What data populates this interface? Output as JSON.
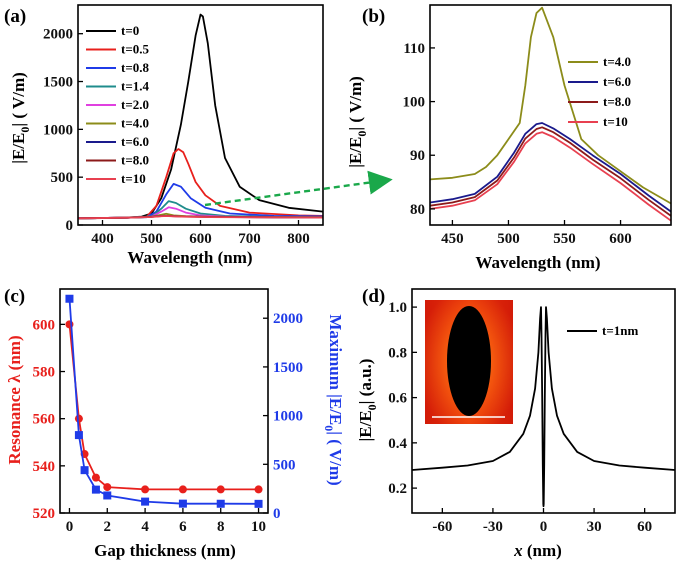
{
  "figure": {
    "panels": {
      "a": {
        "label": "(a)",
        "title": "",
        "xlabel": "Wavelength (nm)",
        "ylabel_parts": [
          "|E/E",
          "0",
          "| ( V/m)"
        ]
      },
      "b": {
        "label": "(b)",
        "xlabel": "Wavelength (nm)",
        "ylabel_parts": [
          "|E/E",
          "0",
          "| ( V/m)"
        ]
      },
      "c": {
        "label": "(c)",
        "xlabel": "Gap thickness (nm)",
        "ylabel_left": "Resonance λ (nm)",
        "ylabel_right_parts": [
          "Maximum |E/E",
          "0",
          "| ( V/m)"
        ]
      },
      "d": {
        "label": "(d)",
        "xlabel_italic": "x",
        "xlabel_rest": " (nm)",
        "ylabel_parts": [
          "|E/E",
          "0",
          "| (a.u.)"
        ]
      }
    }
  },
  "chart_data": [
    {
      "id": "a",
      "type": "line",
      "title": "",
      "xlabel": "Wavelength (nm)",
      "ylabel": "|E/E0| ( V/m)",
      "xlim": [
        350,
        850
      ],
      "ylim": [
        0,
        2300
      ],
      "xticks": [
        400,
        500,
        600,
        700,
        800
      ],
      "yticks": [
        0,
        500,
        1000,
        1500,
        2000
      ],
      "legend_position": "top-left",
      "series": [
        {
          "name": "t=0",
          "color": "#000000",
          "x": [
            350,
            400,
            450,
            480,
            500,
            520,
            540,
            560,
            575,
            590,
            600,
            605,
            615,
            630,
            650,
            680,
            720,
            780,
            850
          ],
          "values": [
            70,
            72,
            78,
            88,
            120,
            280,
            580,
            1050,
            1500,
            1980,
            2200,
            2180,
            1900,
            1250,
            700,
            400,
            260,
            180,
            140
          ]
        },
        {
          "name": "t=0.5",
          "color": "#e8201c",
          "x": [
            350,
            450,
            490,
            510,
            530,
            545,
            555,
            565,
            575,
            590,
            610,
            640,
            700,
            800,
            850
          ],
          "values": [
            70,
            76,
            85,
            200,
            500,
            750,
            795,
            760,
            640,
            450,
            310,
            200,
            130,
            100,
            95
          ]
        },
        {
          "name": "t=0.8",
          "color": "#1f3be8",
          "x": [
            350,
            450,
            490,
            510,
            530,
            545,
            560,
            580,
            610,
            660,
            750,
            850
          ],
          "values": [
            70,
            76,
            82,
            140,
            320,
            430,
            400,
            280,
            180,
            120,
            95,
            90
          ]
        },
        {
          "name": "t=1.4",
          "color": "#1f8c8c",
          "x": [
            350,
            450,
            500,
            520,
            535,
            550,
            570,
            600,
            650,
            750,
            850
          ],
          "values": [
            70,
            76,
            90,
            170,
            250,
            230,
            170,
            120,
            95,
            85,
            82
          ]
        },
        {
          "name": "t=2.0",
          "color": "#e040e0",
          "x": [
            350,
            450,
            500,
            520,
            535,
            550,
            570,
            600,
            650,
            750,
            850
          ],
          "values": [
            70,
            76,
            88,
            140,
            185,
            170,
            130,
            100,
            88,
            82,
            80
          ]
        },
        {
          "name": "t=4.0",
          "color": "#8c8c1a",
          "x": [
            350,
            450,
            500,
            520,
            530,
            545,
            570,
            620,
            750,
            850
          ],
          "values": [
            70,
            76,
            87,
            108,
            117,
            100,
            92,
            86,
            82,
            80
          ]
        },
        {
          "name": "t=6.0",
          "color": "#1a1a8c",
          "x": [
            350,
            450,
            500,
            520,
            530,
            545,
            570,
            620,
            750,
            850
          ],
          "values": [
            70,
            76,
            86,
            95,
            96,
            93,
            89,
            85,
            81,
            79
          ]
        },
        {
          "name": "t=8.0",
          "color": "#8c1a1a",
          "x": [
            350,
            450,
            500,
            520,
            530,
            545,
            570,
            620,
            750,
            850
          ],
          "values": [
            70,
            76,
            85,
            93,
            95,
            92,
            88,
            84,
            80,
            78
          ]
        },
        {
          "name": "t=10",
          "color": "#e84050",
          "x": [
            350,
            450,
            500,
            520,
            530,
            545,
            570,
            620,
            750,
            850
          ],
          "values": [
            70,
            76,
            84,
            92,
            94,
            91,
            87,
            83,
            79,
            77
          ]
        }
      ]
    },
    {
      "id": "b",
      "type": "line",
      "xlabel": "Wavelength (nm)",
      "ylabel": "|E/E0| ( V/m)",
      "xlim": [
        430,
        645
      ],
      "ylim": [
        77,
        118
      ],
      "xticks": [
        450,
        500,
        550,
        600
      ],
      "yticks": [
        80,
        90,
        100,
        110
      ],
      "legend_position": "top-right",
      "series": [
        {
          "name": "t=4.0",
          "color": "#8c8c1a",
          "x": [
            430,
            450,
            470,
            480,
            490,
            500,
            510,
            515,
            520,
            525,
            530,
            540,
            550,
            565,
            580,
            600,
            620,
            645
          ],
          "values": [
            85.5,
            85.8,
            86.5,
            87.8,
            90,
            93,
            96,
            103,
            112,
            116.5,
            117.5,
            112,
            103,
            93,
            90,
            87,
            84,
            81
          ]
        },
        {
          "name": "t=6.0",
          "color": "#1a1a8c",
          "x": [
            430,
            450,
            470,
            490,
            505,
            515,
            525,
            530,
            540,
            555,
            575,
            600,
            625,
            645
          ],
          "values": [
            81.2,
            81.8,
            82.8,
            86,
            90.5,
            94,
            95.8,
            96,
            95,
            93,
            90,
            86.5,
            82.5,
            79.5
          ]
        },
        {
          "name": "t=8.0",
          "color": "#8c1a1a",
          "x": [
            430,
            450,
            470,
            490,
            505,
            515,
            525,
            530,
            540,
            555,
            575,
            600,
            625,
            645
          ],
          "values": [
            80.6,
            81.2,
            82.2,
            85.3,
            89.6,
            93.1,
            94.9,
            95.2,
            94.3,
            92.3,
            89.2,
            85.7,
            81.7,
            78.7
          ]
        },
        {
          "name": "t=10",
          "color": "#e84050",
          "x": [
            430,
            450,
            470,
            490,
            505,
            515,
            525,
            530,
            540,
            555,
            575,
            600,
            625,
            645
          ],
          "values": [
            80,
            80.6,
            81.6,
            84.6,
            88.8,
            92.2,
            94,
            94.3,
            93.4,
            91.4,
            88.4,
            84.8,
            80.8,
            77.8
          ]
        }
      ]
    },
    {
      "id": "c",
      "type": "line",
      "xlabel": "Gap thickness (nm)",
      "ylabel": "Resonance λ (nm)",
      "ylabel_right": "Maximum |E/E0| ( V/m)",
      "xlim": [
        -0.5,
        10.5
      ],
      "ylim": [
        520,
        615
      ],
      "ylim_right": [
        0,
        2300
      ],
      "xticks": [
        0,
        2,
        4,
        6,
        8,
        10
      ],
      "yticks": [
        520,
        540,
        560,
        580,
        600
      ],
      "yticks_right": [
        0,
        500,
        1000,
        1500,
        2000
      ],
      "series": [
        {
          "name": "Resonance λ",
          "color": "#e8201c",
          "marker": "circle",
          "axis": "left",
          "x": [
            0,
            0.5,
            0.8,
            1.4,
            2.0,
            4.0,
            6.0,
            8.0,
            10.0
          ],
          "values": [
            600,
            560,
            545,
            535,
            531,
            530,
            530,
            530,
            530
          ]
        },
        {
          "name": "Maximum |E/E0|",
          "color": "#1f3be8",
          "marker": "square",
          "axis": "right",
          "x": [
            0,
            0.5,
            0.8,
            1.4,
            2.0,
            4.0,
            6.0,
            8.0,
            10.0
          ],
          "values": [
            2200,
            800,
            440,
            240,
            180,
            117,
            96,
            95,
            94
          ]
        }
      ]
    },
    {
      "id": "d",
      "type": "line",
      "xlabel": "x (nm)",
      "ylabel": "|E/E0| (a.u.)",
      "xlim": [
        -78,
        78
      ],
      "ylim": [
        0.09,
        1.08
      ],
      "xticks": [
        -60,
        -30,
        0,
        30,
        60
      ],
      "yticks": [
        0.2,
        0.4,
        0.6,
        0.8,
        1.0
      ],
      "legend_position": "top-right",
      "series": [
        {
          "name": "t=1nm",
          "color": "#000000",
          "x": [
            -78,
            -60,
            -45,
            -30,
            -20,
            -12,
            -8,
            -5,
            -3,
            -2,
            -1.5,
            -1.2,
            -0.8,
            -0.4,
            -0.1,
            0,
            0.1,
            0.4,
            0.8,
            1.2,
            1.5,
            2,
            3,
            5,
            8,
            12,
            20,
            30,
            45,
            60,
            78
          ],
          "values": [
            0.28,
            0.29,
            0.3,
            0.32,
            0.36,
            0.44,
            0.52,
            0.64,
            0.8,
            0.95,
            1.0,
            0.88,
            0.6,
            0.3,
            0.13,
            0.12,
            0.13,
            0.3,
            0.6,
            0.88,
            1.0,
            0.95,
            0.8,
            0.64,
            0.52,
            0.44,
            0.36,
            0.32,
            0.3,
            0.29,
            0.28
          ]
        }
      ]
    }
  ]
}
